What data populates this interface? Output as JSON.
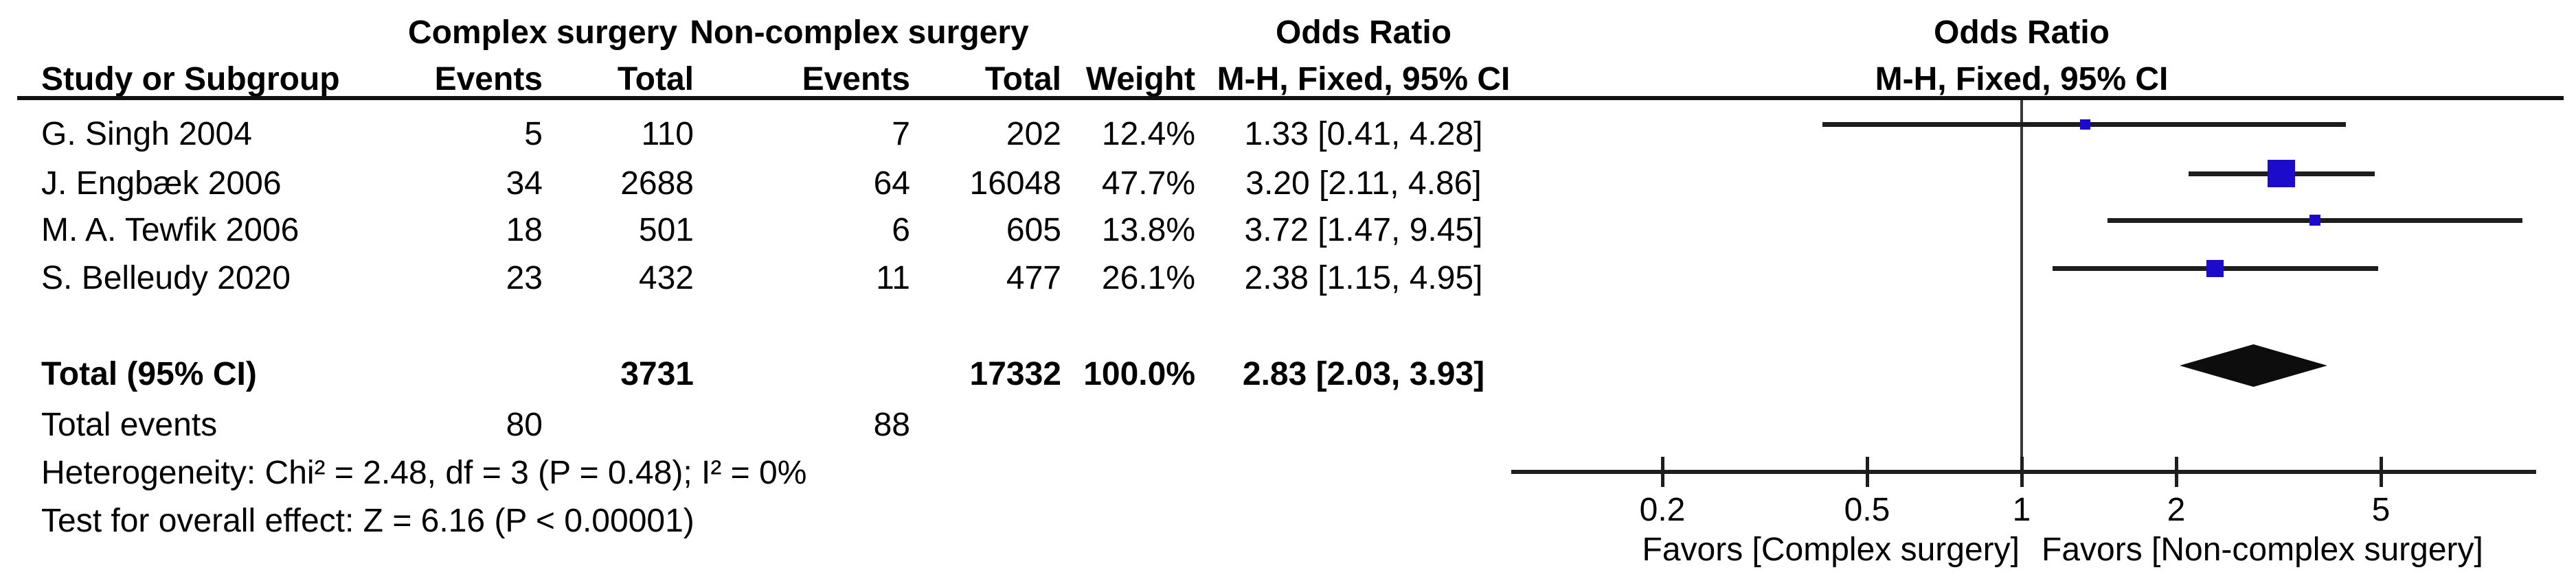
{
  "header": {
    "group1": "Complex surgery",
    "group2": "Non-complex surgery",
    "or_table": "Odds Ratio",
    "or_plot": "Odds Ratio",
    "method_table": "M-H, Fixed, 95% CI",
    "method_plot": "M-H, Fixed, 95% CI",
    "study_col": "Study or Subgroup",
    "events_col": "Events",
    "total_col": "Total",
    "weight_col": "Weight"
  },
  "footer": {
    "total_label": "Total (95% CI)",
    "total1": "3731",
    "total2": "17332",
    "total_weight": "100.0%",
    "total_or": "2.83 [2.03, 3.93]",
    "total_events_label": "Total events",
    "total_events1": "80",
    "total_events2": "88",
    "heterogeneity": "Heterogeneity: Chi² = 2.48, df = 3 (P = 0.48); I² = 0%",
    "overall": "Test for overall effect: Z = 6.16 (P < 0.00001)"
  },
  "chart_data": {
    "type": "forest",
    "effect_measure": "Odds Ratio",
    "method": "M-H, Fixed, 95% CI",
    "x_scale": "log",
    "axis_ticks": [
      0.2,
      0.5,
      1,
      2,
      5
    ],
    "null_line_value": 1,
    "favors_left": "Favors [Complex surgery]",
    "favors_right": "Favors [Non-complex surgery]",
    "studies": [
      {
        "label": "G. Singh 2004",
        "events1": "5",
        "total1": "110",
        "events2": "7",
        "total2": "202",
        "weight": "12.4%",
        "weight_pct": 12.4,
        "or": 1.33,
        "ci_low": 0.41,
        "ci_high": 4.28,
        "or_ci": "1.33 [0.41, 4.28]"
      },
      {
        "label": "J. Engbæk 2006",
        "events1": "34",
        "total1": "2688",
        "events2": "64",
        "total2": "16048",
        "weight": "47.7%",
        "weight_pct": 47.7,
        "or": 3.2,
        "ci_low": 2.11,
        "ci_high": 4.86,
        "or_ci": "3.20 [2.11, 4.86]"
      },
      {
        "label": "M. A. Tewfik 2006",
        "events1": "18",
        "total1": "501",
        "events2": "6",
        "total2": "605",
        "weight": "13.8%",
        "weight_pct": 13.8,
        "or": 3.72,
        "ci_low": 1.47,
        "ci_high": 9.45,
        "or_ci": "3.72 [1.47, 9.45]"
      },
      {
        "label": "S. Belleudy 2020",
        "events1": "23",
        "total1": "432",
        "events2": "11",
        "total2": "477",
        "weight": "26.1%",
        "weight_pct": 26.1,
        "or": 2.38,
        "ci_low": 1.15,
        "ci_high": 4.95,
        "or_ci": "2.38 [1.15, 4.95]"
      }
    ],
    "total": {
      "or": 2.83,
      "ci_low": 2.03,
      "ci_high": 3.93,
      "weight": "100.0%"
    }
  },
  "colors": {
    "marker": "#1c0bcb",
    "line": "#1e1e1e",
    "diamond": "#0d0d0d",
    "null_line": "#3a3a3a",
    "text": "#000000"
  }
}
